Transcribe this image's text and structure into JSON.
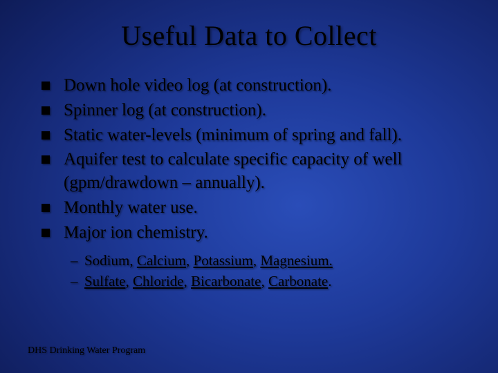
{
  "slide": {
    "title": "Useful Data to Collect",
    "title_fontsize": 40,
    "background_gradient_center": "#2a4db8",
    "background_gradient_edge": "#020618",
    "text_color": "#000000",
    "shadow_color": "rgba(0,0,0,0.45)",
    "bullets": [
      {
        "text": "Down hole video log (at construction)."
      },
      {
        "text": "Spinner log (at construction)."
      },
      {
        "text": "Static water-levels (minimum of spring and fall)."
      },
      {
        "text": "Aquifer test to calculate specific capacity of well (gpm/drawdown – annually)."
      },
      {
        "text": "Monthly water use."
      },
      {
        "text": "Major ion chemistry."
      }
    ],
    "bullet_fontsize": 25,
    "bullet_marker_color": "#000000",
    "bullet_marker_size": 12,
    "sub_bullets": [
      {
        "dash": "–",
        "plain_before": "Sodium, ",
        "u1": "Calcium",
        "mid1": ", ",
        "u2": "Potassium",
        "mid2": ", ",
        "u3": "Magnesium.",
        "tail": ""
      },
      {
        "dash": "–",
        "plain_before": "",
        "u1": "Sulfate",
        "mid1": ", ",
        "u2": "Chloride",
        "mid2": ", ",
        "u3": "Bicarbonate",
        "tail_sep": ", ",
        "u4": "Carbonate",
        "tail": "."
      }
    ],
    "sub_bullet_fontsize": 21,
    "footer": "DHS Drinking Water Program",
    "footer_fontsize": 14
  }
}
